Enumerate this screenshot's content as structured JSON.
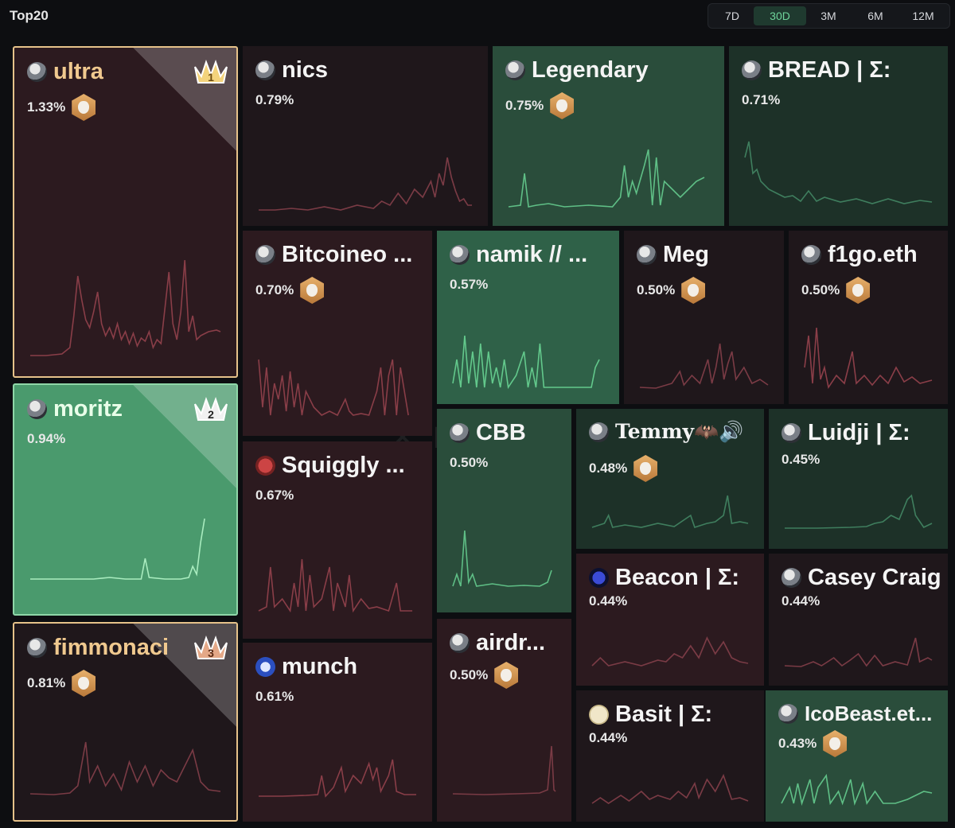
{
  "header": {
    "title": "Top20"
  },
  "periods": {
    "selected": "30D",
    "options": [
      "7D",
      "30D",
      "3M",
      "6M",
      "12M"
    ]
  },
  "colors": {
    "loss": "#8a3e48",
    "gain": "#5fbf86",
    "gold": "#f0c98f"
  },
  "tiles": [
    {
      "name": "ultra",
      "pct": "1.33%",
      "rank": "1",
      "badge": true
    },
    {
      "name": "nics",
      "pct": "0.79%",
      "badge": false
    },
    {
      "name": "Legendary",
      "pct": "0.75%",
      "badge": true
    },
    {
      "name": "BREAD | Σ:",
      "pct": "0.71%",
      "badge": false
    },
    {
      "name": "Bitcoineo ...",
      "pct": "0.70%",
      "badge": true
    },
    {
      "name": "namik // ...",
      "pct": "0.57%",
      "badge": false
    },
    {
      "name": "Meg",
      "pct": "0.50%",
      "badge": true
    },
    {
      "name": "f1go.eth",
      "pct": "0.50%",
      "badge": true
    },
    {
      "name": "moritz",
      "pct": "0.94%",
      "rank": "2",
      "badge": false
    },
    {
      "name": "Squiggly ...",
      "pct": "0.67%",
      "badge": false
    },
    {
      "name": "CBB",
      "pct": "0.50%",
      "badge": false
    },
    {
      "name": "Temmy🦇🔊",
      "pct": "0.48%",
      "badge": true
    },
    {
      "name": "Luidji | Σ:",
      "pct": "0.45%",
      "badge": false
    },
    {
      "name": "Beacon | Σ:",
      "pct": "0.44%",
      "badge": false
    },
    {
      "name": "Casey Craig",
      "pct": "0.44%",
      "badge": false
    },
    {
      "name": "fimmonaci",
      "pct": "0.81%",
      "rank": "3",
      "badge": true
    },
    {
      "name": "munch",
      "pct": "0.61%",
      "badge": false
    },
    {
      "name": "airdr...",
      "pct": "0.50%",
      "badge": true
    },
    {
      "name": "Basit | Σ:",
      "pct": "0.44%",
      "badge": false
    },
    {
      "name": "IcoBeast.et...",
      "pct": "0.43%",
      "badge": true
    }
  ]
}
